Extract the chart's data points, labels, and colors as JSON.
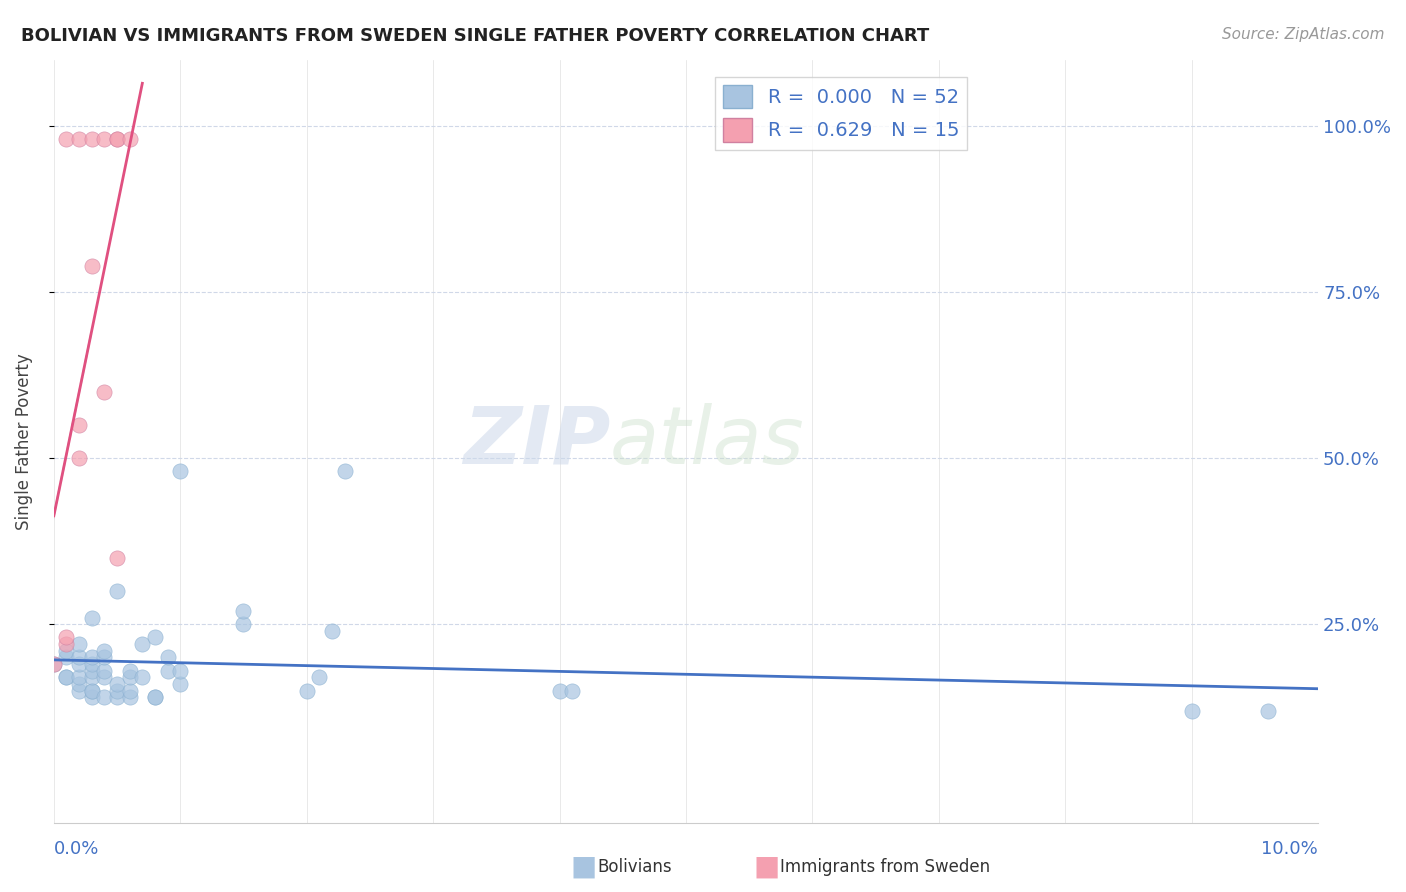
{
  "title": "BOLIVIAN VS IMMIGRANTS FROM SWEDEN SINGLE FATHER POVERTY CORRELATION CHART",
  "source": "Source: ZipAtlas.com",
  "ylabel": "Single Father Poverty",
  "ytick_labels": [
    "100.0%",
    "75.0%",
    "50.0%",
    "25.0%"
  ],
  "bolivians_x": [
    0.0,
    0.001,
    0.001,
    0.001,
    0.001,
    0.002,
    0.002,
    0.002,
    0.002,
    0.002,
    0.002,
    0.003,
    0.003,
    0.003,
    0.003,
    0.003,
    0.003,
    0.003,
    0.003,
    0.004,
    0.004,
    0.004,
    0.004,
    0.004,
    0.005,
    0.005,
    0.005,
    0.005,
    0.006,
    0.006,
    0.006,
    0.006,
    0.007,
    0.007,
    0.008,
    0.008,
    0.008,
    0.009,
    0.009,
    0.01,
    0.01,
    0.01,
    0.015,
    0.015,
    0.02,
    0.021,
    0.022,
    0.023,
    0.04,
    0.041,
    0.09,
    0.096
  ],
  "bolivians_y": [
    0.19,
    0.17,
    0.17,
    0.2,
    0.21,
    0.15,
    0.16,
    0.17,
    0.19,
    0.2,
    0.22,
    0.14,
    0.15,
    0.15,
    0.17,
    0.18,
    0.19,
    0.2,
    0.26,
    0.14,
    0.17,
    0.18,
    0.2,
    0.21,
    0.14,
    0.15,
    0.16,
    0.3,
    0.14,
    0.15,
    0.17,
    0.18,
    0.17,
    0.22,
    0.14,
    0.14,
    0.23,
    0.18,
    0.2,
    0.16,
    0.18,
    0.48,
    0.25,
    0.27,
    0.15,
    0.17,
    0.24,
    0.48,
    0.15,
    0.15,
    0.12,
    0.12
  ],
  "sweden_x": [
    0.0,
    0.001,
    0.001,
    0.001,
    0.002,
    0.002,
    0.002,
    0.003,
    0.003,
    0.004,
    0.004,
    0.005,
    0.005,
    0.005,
    0.006
  ],
  "sweden_y": [
    0.19,
    0.22,
    0.23,
    0.98,
    0.5,
    0.55,
    0.98,
    0.79,
    0.98,
    0.98,
    0.6,
    0.35,
    0.98,
    0.98,
    0.98
  ],
  "bolivians_color": "#a8c4e0",
  "sweden_color": "#f4a0b0",
  "bolivians_label": "Bolivians",
  "sweden_label": "Immigrants from Sweden",
  "r_bolivians": "0.000",
  "n_bolivians": "52",
  "r_sweden": "0.629",
  "n_sweden": "15",
  "trend_bolivians_color": "#4472c4",
  "trend_sweden_color": "#e05080",
  "watermark_zip": "ZIP",
  "watermark_atlas": "atlas",
  "background_color": "#ffffff",
  "grid_color": "#d0d8e8",
  "xlim": [
    0.0,
    0.1
  ],
  "ylim": [
    -0.05,
    1.1
  ],
  "marker_size": 120,
  "marker_alpha": 0.7
}
